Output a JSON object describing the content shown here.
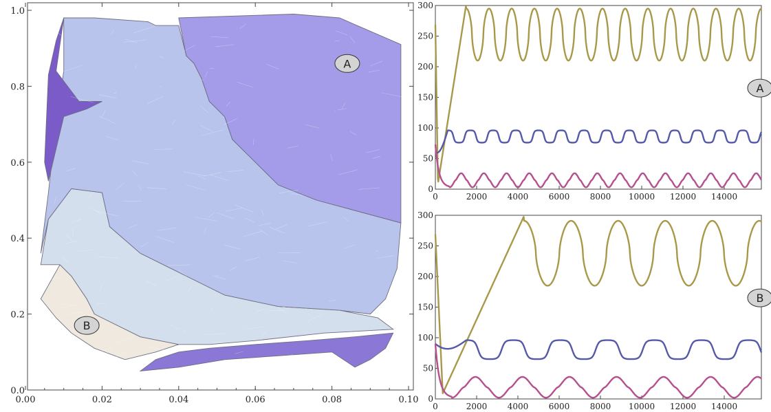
{
  "chart_data": [
    {
      "type": "contour",
      "title": "",
      "xlabel": "",
      "ylabel": "",
      "xlim": [
        0,
        0.1
      ],
      "ylim": [
        0,
        1.0
      ],
      "xticks": [
        0.0,
        0.02,
        0.04,
        0.06,
        0.08,
        0.1
      ],
      "xtick_labels": [
        "0.00",
        "0.02",
        "0.04",
        "0.06",
        "0.08",
        "0.10"
      ],
      "yticks": [
        0.0,
        0.2,
        0.4,
        0.6,
        0.8,
        1.0
      ],
      "ytick_labels": [
        "0.0",
        "0.2",
        "0.4",
        "0.6",
        "0.8",
        "1.0"
      ],
      "regions": [
        {
          "level": 1,
          "color": "#efe9e0",
          "points": [
            [
              0.004,
              0.24
            ],
            [
              0.009,
              0.33
            ],
            [
              0.012,
              0.3
            ],
            [
              0.016,
              0.24
            ],
            [
              0.018,
              0.2
            ],
            [
              0.022,
              0.18
            ],
            [
              0.03,
              0.14
            ],
            [
              0.04,
              0.12
            ],
            [
              0.034,
              0.1
            ],
            [
              0.026,
              0.08
            ],
            [
              0.018,
              0.11
            ],
            [
              0.012,
              0.15
            ],
            [
              0.008,
              0.19
            ]
          ]
        },
        {
          "level": 2,
          "color": "#d3dfec",
          "points": [
            [
              0.004,
              0.33
            ],
            [
              0.006,
              0.45
            ],
            [
              0.012,
              0.53
            ],
            [
              0.02,
              0.52
            ],
            [
              0.022,
              0.43
            ],
            [
              0.03,
              0.36
            ],
            [
              0.04,
              0.31
            ],
            [
              0.052,
              0.25
            ],
            [
              0.066,
              0.22
            ],
            [
              0.082,
              0.21
            ],
            [
              0.092,
              0.19
            ],
            [
              0.096,
              0.16
            ],
            [
              0.078,
              0.15
            ],
            [
              0.06,
              0.13
            ],
            [
              0.048,
              0.12
            ],
            [
              0.04,
              0.12
            ],
            [
              0.03,
              0.14
            ],
            [
              0.022,
              0.18
            ],
            [
              0.018,
              0.2
            ],
            [
              0.016,
              0.24
            ],
            [
              0.012,
              0.3
            ],
            [
              0.009,
              0.33
            ]
          ]
        },
        {
          "level": 3,
          "color": "#b9c4ec",
          "points": [
            [
              0.01,
              0.98
            ],
            [
              0.018,
              0.98
            ],
            [
              0.032,
              0.97
            ],
            [
              0.034,
              0.96
            ],
            [
              0.04,
              0.96
            ],
            [
              0.042,
              0.88
            ],
            [
              0.044,
              0.86
            ],
            [
              0.046,
              0.82
            ],
            [
              0.048,
              0.76
            ],
            [
              0.052,
              0.72
            ],
            [
              0.054,
              0.66
            ],
            [
              0.06,
              0.6
            ],
            [
              0.066,
              0.54
            ],
            [
              0.076,
              0.5
            ],
            [
              0.098,
              0.44
            ],
            [
              0.097,
              0.32
            ],
            [
              0.094,
              0.24
            ],
            [
              0.09,
              0.2
            ],
            [
              0.082,
              0.21
            ],
            [
              0.066,
              0.22
            ],
            [
              0.052,
              0.25
            ],
            [
              0.04,
              0.31
            ],
            [
              0.03,
              0.36
            ],
            [
              0.022,
              0.43
            ],
            [
              0.02,
              0.52
            ],
            [
              0.012,
              0.53
            ],
            [
              0.006,
              0.45
            ],
            [
              0.004,
              0.36
            ],
            [
              0.006,
              0.52
            ],
            [
              0.008,
              0.7
            ],
            [
              0.01,
              0.84
            ]
          ]
        },
        {
          "level": 4,
          "color": "#a49ce8",
          "points": [
            [
              0.04,
              0.98
            ],
            [
              0.07,
              0.99
            ],
            [
              0.082,
              0.98
            ],
            [
              0.098,
              0.91
            ],
            [
              0.098,
              0.44
            ],
            [
              0.076,
              0.5
            ],
            [
              0.066,
              0.54
            ],
            [
              0.06,
              0.6
            ],
            [
              0.054,
              0.66
            ],
            [
              0.052,
              0.72
            ],
            [
              0.048,
              0.76
            ],
            [
              0.046,
              0.82
            ],
            [
              0.044,
              0.86
            ],
            [
              0.042,
              0.88
            ]
          ]
        },
        {
          "level": 5,
          "color": "#7a5bc8",
          "points": [
            [
              0.006,
              0.83
            ],
            [
              0.008,
              0.92
            ],
            [
              0.01,
              0.98
            ],
            [
              0.008,
              0.84
            ],
            [
              0.014,
              0.76
            ],
            [
              0.02,
              0.76
            ],
            [
              0.016,
              0.74
            ],
            [
              0.01,
              0.72
            ],
            [
              0.006,
              0.55
            ],
            [
              0.005,
              0.6
            ]
          ]
        },
        {
          "level": 6,
          "color": "#8b78d6",
          "points": [
            [
              0.03,
              0.05
            ],
            [
              0.04,
              0.06
            ],
            [
              0.052,
              0.08
            ],
            [
              0.066,
              0.09
            ],
            [
              0.08,
              0.1
            ],
            [
              0.086,
              0.06
            ],
            [
              0.09,
              0.08
            ],
            [
              0.094,
              0.11
            ],
            [
              0.096,
              0.15
            ],
            [
              0.086,
              0.14
            ],
            [
              0.074,
              0.13
            ],
            [
              0.06,
              0.12
            ],
            [
              0.048,
              0.11
            ],
            [
              0.04,
              0.1
            ],
            [
              0.034,
              0.08
            ]
          ]
        }
      ],
      "annotations": [
        {
          "text": "A",
          "x": 0.084,
          "y": 0.86
        },
        {
          "text": "B",
          "x": 0.016,
          "y": 0.17
        }
      ]
    },
    {
      "type": "line",
      "title": "",
      "xlabel": "",
      "ylabel": "",
      "xlim": [
        0,
        15800
      ],
      "ylim": [
        0,
        300
      ],
      "xticks": [
        0,
        2000,
        4000,
        6000,
        8000,
        10000,
        12000,
        14000
      ],
      "xtick_labels": [
        "0",
        "2000",
        "4000",
        "6000",
        "8000",
        "10000",
        "12000",
        "14000"
      ],
      "yticks": [
        0,
        50,
        100,
        150,
        200,
        250,
        300
      ],
      "ytick_labels": [
        "0",
        "50",
        "100",
        "150",
        "200",
        "250",
        "300"
      ],
      "annotation": "A",
      "series": [
        {
          "color": "#a8994a",
          "start": 290,
          "min": 210,
          "max": 295,
          "period": 1100,
          "rise_end": 1500
        },
        {
          "color": "#5559a8",
          "start": 60,
          "min": 76,
          "max": 96,
          "period": 1100,
          "rise_end": 600
        },
        {
          "color": "#b54f8e",
          "start": 70,
          "min": 3,
          "max": 26,
          "period": 1100,
          "rise_end": 700
        }
      ]
    },
    {
      "type": "line",
      "title": "",
      "xlabel": "",
      "ylabel": "",
      "xlim": [
        0,
        15800
      ],
      "ylim": [
        0,
        300
      ],
      "xticks": [
        0,
        2000,
        4000,
        6000,
        8000,
        10000,
        12000,
        14000
      ],
      "xtick_labels": [
        "0",
        "2000",
        "4000",
        "6000",
        "8000",
        "10000",
        "12000",
        "14000"
      ],
      "yticks": [
        0,
        50,
        100,
        150,
        200,
        250,
        300
      ],
      "ytick_labels": [
        "0",
        "50",
        "100",
        "150",
        "200",
        "250",
        "300"
      ],
      "annotation": "B",
      "series": [
        {
          "color": "#a8994a",
          "start": 290,
          "min": 185,
          "max": 291,
          "period": 2280,
          "rise_end": 4300
        },
        {
          "color": "#5559a8",
          "start": 90,
          "min": 65,
          "max": 96,
          "period": 2280,
          "rise_end": 1500
        },
        {
          "color": "#b54f8e",
          "start": 88,
          "min": 2,
          "max": 36,
          "period": 2280,
          "rise_end": 800
        }
      ]
    }
  ]
}
